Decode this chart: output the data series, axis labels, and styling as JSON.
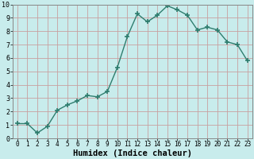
{
  "xlabel": "Humidex (Indice chaleur)",
  "x": [
    0,
    1,
    2,
    3,
    4,
    5,
    6,
    7,
    8,
    9,
    10,
    11,
    12,
    13,
    14,
    15,
    16,
    17,
    18,
    19,
    20,
    21,
    22,
    23
  ],
  "y": [
    1.1,
    1.1,
    0.4,
    0.9,
    2.1,
    2.5,
    2.8,
    3.2,
    3.1,
    3.5,
    5.3,
    7.6,
    9.3,
    8.7,
    9.2,
    9.9,
    9.6,
    9.2,
    8.1,
    8.3,
    8.1,
    7.2,
    7.0,
    5.8
  ],
  "line_color": "#2e7d6e",
  "marker": "+",
  "marker_size": 4.5,
  "line_width": 1.0,
  "bg_color": "#c8ecec",
  "grid_color": "#c8a0a0",
  "xlim": [
    -0.5,
    23.5
  ],
  "ylim": [
    0,
    10
  ],
  "xtick_fontsize": 5.5,
  "ytick_fontsize": 6.0,
  "xlabel_fontsize": 7.5
}
